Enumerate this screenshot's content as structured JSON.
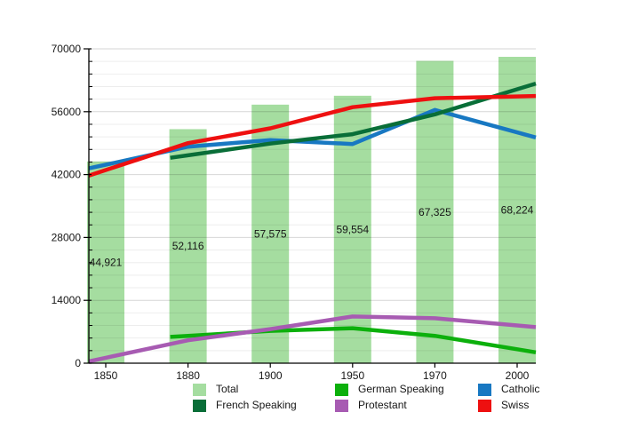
{
  "chart_data": {
    "type": "bar+line",
    "title": "",
    "xlabel": "",
    "ylabel": "",
    "categories": [
      "1850",
      "1880",
      "1900",
      "1950",
      "1970",
      "2000"
    ],
    "ylim": [
      0,
      70000
    ],
    "yticks": [
      0,
      14000,
      28000,
      42000,
      56000,
      70000
    ],
    "ytick_labels": [
      "0",
      "14000",
      "28000",
      "42000",
      "56000",
      "70000"
    ],
    "minor_grid_step": 2800,
    "grid": true,
    "bars": {
      "name": "Total",
      "color": "#a5dda0",
      "values": [
        44921,
        52116,
        57575,
        59554,
        67325,
        68224
      ],
      "display_values": [
        "44,921",
        "52,116",
        "57,575",
        "59,554",
        "67,325",
        "68,224"
      ]
    },
    "series": [
      {
        "name": "German Speaking",
        "color": "#0cb00c",
        "values": [
          null,
          6100,
          7200,
          7800,
          6100,
          3100
        ]
      },
      {
        "name": "Catholic",
        "color": "#1878c2",
        "values": [
          44200,
          48200,
          49700,
          48800,
          56400,
          51400
        ]
      },
      {
        "name": "French Speaking",
        "color": "#096e38",
        "values": [
          null,
          46300,
          48900,
          51000,
          55400,
          61000
        ]
      },
      {
        "name": "Protestant",
        "color": "#a75bb2",
        "values": [
          1200,
          5100,
          7600,
          10400,
          10000,
          8400
        ]
      },
      {
        "name": "Swiss",
        "color": "#ee1010",
        "values": [
          43000,
          49000,
          52300,
          57000,
          59000,
          59400
        ]
      }
    ],
    "legend_position": "bottom",
    "legend": [
      {
        "label": "Total"
      },
      {
        "label": "German Speaking"
      },
      {
        "label": "Catholic"
      },
      {
        "label": "French Speaking"
      },
      {
        "label": "Protestant"
      },
      {
        "label": "Swiss"
      }
    ]
  }
}
